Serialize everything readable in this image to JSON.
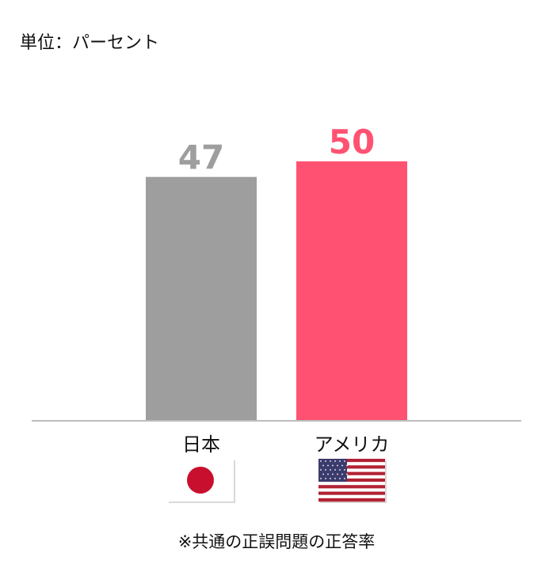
{
  "unit_label": "単位：パーセント",
  "footnote": "※共通の正誤問題の正答率",
  "chart_data": {
    "type": "bar",
    "title": "",
    "xlabel": "",
    "ylabel": "",
    "ylim": [
      0,
      50
    ],
    "grid": false,
    "categories": [
      "日本",
      "アメリカ"
    ],
    "values": [
      47,
      50
    ],
    "colors": [
      "#9e9e9e",
      "#ff5272"
    ],
    "label_colors": [
      "#9e9e9e",
      "#ff5272"
    ],
    "flags": [
      "japan-flag-icon",
      "usa-flag-icon"
    ]
  }
}
